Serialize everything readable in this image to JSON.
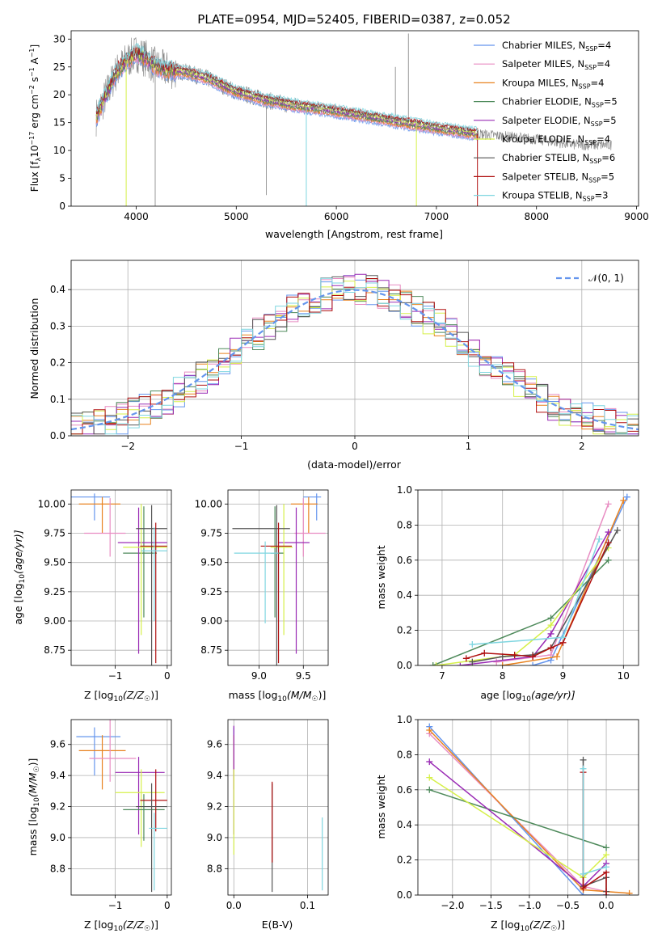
{
  "figure": {
    "title": "PLATE=0954, MJD=52405, FIBERID=0387, z=0.052",
    "colors": {
      "chabrier_miles": "#6495ed",
      "salpeter_miles": "#e88cc2",
      "kroupa_miles": "#e8821f",
      "chabrier_elodie": "#4e8a5b",
      "salpeter_elodie": "#9a2bb5",
      "kroupa_elodie": "#d6f04a",
      "chabrier_stelib": "#555555",
      "salpeter_stelib": "#b01010",
      "kroupa_stelib": "#7fd6e0",
      "observed": "#808080",
      "gaussian": "#6495ed"
    }
  },
  "chart_data": [
    {
      "id": "spectrum",
      "type": "line",
      "title": "PLATE=0954, MJD=52405, FIBERID=0387, z=0.052",
      "xlabel": "wavelength [Angstrom, rest frame]",
      "ylabel_main": "Flux [f",
      "ylabel_sub": "λ",
      "ylabel_rest": "10",
      "ylabel_exp1": "−17",
      "ylabel_mid": " erg cm",
      "ylabel_exp2": "−2",
      "ylabel_mid2": " s",
      "ylabel_exp3": "−1",
      "ylabel_end": " A",
      "ylabel_exp4": "−1",
      "ylabel_close": "]",
      "xlim": [
        3350,
        9020
      ],
      "ylim": [
        0,
        31.5
      ],
      "xticks": [
        4000,
        5000,
        6000,
        7000,
        8000,
        9000
      ],
      "yticks": [
        0,
        5,
        10,
        15,
        20,
        25,
        30
      ],
      "legend": "top-right",
      "legend_entries": [
        {
          "imf": "Chabrier MILES, N",
          "n": "=4",
          "color_key": "chabrier_miles"
        },
        {
          "imf": "Salpeter MILES, N",
          "n": "=4",
          "color_key": "salpeter_miles"
        },
        {
          "imf": "Kroupa MILES, N",
          "n": "=4",
          "color_key": "kroupa_miles"
        },
        {
          "imf": "Chabrier ELODIE, N",
          "n": "=5",
          "color_key": "chabrier_elodie"
        },
        {
          "imf": "Salpeter ELODIE, N",
          "n": "=5",
          "color_key": "salpeter_elodie"
        },
        {
          "imf": "Kroupa ELODIE, N",
          "n": "=4",
          "color_key": "kroupa_elodie"
        },
        {
          "imf": "Chabrier STELIB, N",
          "n": "=6",
          "color_key": "chabrier_stelib"
        },
        {
          "imf": "Salpeter STELIB, N",
          "n": "=5",
          "color_key": "salpeter_stelib"
        },
        {
          "imf": "Kroupa STELIB, N",
          "n": "=3",
          "color_key": "kroupa_stelib"
        }
      ],
      "legend_sub": "SSP",
      "continuum": {
        "x": [
          3600,
          3700,
          3800,
          3900,
          4000,
          4100,
          4200,
          4300,
          4500,
          4700,
          5000,
          5300,
          5600,
          6000,
          6500,
          7000,
          7400,
          8000,
          8400,
          8750
        ],
        "y": [
          16,
          20,
          24,
          26,
          27.5,
          26.5,
          25,
          24.5,
          24,
          23,
          20.5,
          19,
          18,
          17,
          15.5,
          14,
          13,
          12,
          11,
          11
        ]
      },
      "model_range": [
        3600,
        7420
      ],
      "model_spikes": [
        {
          "x": 3900,
          "y": 0,
          "color_key": "kroupa_elodie"
        },
        {
          "x": 5700,
          "y": 0,
          "color_key": "kroupa_stelib"
        },
        {
          "x": 6800,
          "y": 0,
          "color_key": "kroupa_elodie"
        },
        {
          "x": 7410,
          "y": 0,
          "color_key": "salpeter_stelib"
        }
      ],
      "observed_spikes": [
        {
          "x": 4190,
          "y": 0
        },
        {
          "x": 5300,
          "y": 2
        },
        {
          "x": 6720,
          "y": 31
        },
        {
          "x": 6590,
          "y": 25
        }
      ]
    },
    {
      "id": "residuals",
      "type": "step",
      "xlabel": "(data-model)/error",
      "ylabel": "Normed distribution",
      "xlim": [
        -2.5,
        2.5
      ],
      "ylim": [
        0,
        0.48
      ],
      "xticks": [
        -2,
        -1,
        0,
        1,
        2
      ],
      "yticks": [
        0,
        0.1,
        0.2,
        0.3,
        0.4
      ],
      "grid": true,
      "legend": "top-right",
      "legend_label": "𝒩(0, 1)",
      "bin_width": 0.1
    },
    {
      "id": "age_vs_Z",
      "type": "errorbar",
      "xlabel_pre": "Z [log",
      "xlabel_sub": "10",
      "xlabel_post": "(Z/Z",
      "xlabel_sun": "☉",
      "xlabel_end": ")]",
      "ylabel_pre": "age  [log",
      "ylabel_sub": "10",
      "ylabel_post": "(age/yr)]",
      "xlim": [
        -1.85,
        0.08
      ],
      "ylim": [
        8.62,
        10.12
      ],
      "xticks": [
        -1,
        0
      ],
      "yticks": [
        8.75,
        9.0,
        9.25,
        9.5,
        9.75,
        10.0
      ],
      "grid": true,
      "points": [
        {
          "color_key": "chabrier_miles",
          "x": -1.4,
          "xerr": [
            0.45,
            0.3
          ],
          "y": 10.06,
          "yerr": [
            0.2,
            0.03
          ]
        },
        {
          "color_key": "kroupa_miles",
          "x": -1.25,
          "xerr": [
            0.45,
            0.35
          ],
          "y": 10.0,
          "yerr": [
            0.25,
            0.06
          ]
        },
        {
          "color_key": "salpeter_miles",
          "x": -1.1,
          "xerr": [
            0.5,
            0.3
          ],
          "y": 9.75,
          "yerr": [
            0.2,
            0.3
          ]
        },
        {
          "color_key": "chabrier_elodie",
          "x": -0.45,
          "xerr": [
            0.4,
            0.25
          ],
          "y": 9.58,
          "yerr": [
            0.55,
            0.4
          ]
        },
        {
          "color_key": "salpeter_elodie",
          "x": -0.55,
          "xerr": [
            0.4,
            0.55
          ],
          "y": 9.67,
          "yerr": [
            0.95,
            0.3
          ]
        },
        {
          "color_key": "kroupa_elodie",
          "x": -0.5,
          "xerr": [
            0.35,
            0.5
          ],
          "y": 9.63,
          "yerr": [
            0.75,
            0.37
          ]
        },
        {
          "color_key": "chabrier_stelib",
          "x": -0.3,
          "xerr": [
            0.3,
            0.3
          ],
          "y": 9.79,
          "yerr": [
            1.2,
            0.2
          ]
        },
        {
          "color_key": "salpeter_stelib",
          "x": -0.22,
          "xerr": [
            0.3,
            0.22
          ],
          "y": 9.64,
          "yerr": [
            1.0,
            0.2
          ]
        },
        {
          "color_key": "kroupa_stelib",
          "x": -0.25,
          "xerr": [
            0.25,
            0.25
          ],
          "y": 9.6,
          "yerr": [
            0.6,
            0.2
          ]
        }
      ]
    },
    {
      "id": "age_vs_mass",
      "type": "errorbar",
      "xlabel_pre": "mass [log",
      "xlabel_sub": "10",
      "xlabel_post": "(M/M",
      "xlabel_sun": "☉",
      "xlabel_end": ")]",
      "xlim": [
        8.65,
        9.78
      ],
      "ylim": [
        8.62,
        10.12
      ],
      "xticks": [
        9.0,
        9.5
      ],
      "yticks": [
        8.75,
        9.0,
        9.25,
        9.5,
        9.75,
        10.0
      ],
      "grid": true,
      "points": [
        {
          "color_key": "chabrier_miles",
          "x": 9.65,
          "xerr": [
            0.15,
            0.05
          ],
          "y": 10.06,
          "yerr": [
            0.2,
            0.03
          ]
        },
        {
          "color_key": "kroupa_miles",
          "x": 9.56,
          "xerr": [
            0.2,
            0.1
          ],
          "y": 10.0,
          "yerr": [
            0.25,
            0.06
          ]
        },
        {
          "color_key": "salpeter_miles",
          "x": 9.5,
          "xerr": [
            0.1,
            0.25
          ],
          "y": 9.75,
          "yerr": [
            0.2,
            0.3
          ]
        },
        {
          "color_key": "chabrier_elodie",
          "x": 9.18,
          "xerr": [
            0.05,
            0.1
          ],
          "y": 9.58,
          "yerr": [
            0.55,
            0.4
          ]
        },
        {
          "color_key": "salpeter_elodie",
          "x": 9.42,
          "xerr": [
            0.2,
            0.15
          ],
          "y": 9.67,
          "yerr": [
            0.95,
            0.3
          ]
        },
        {
          "color_key": "kroupa_elodie",
          "x": 9.28,
          "xerr": [
            0.15,
            0.1
          ],
          "y": 9.63,
          "yerr": [
            0.75,
            0.37
          ]
        },
        {
          "color_key": "chabrier_stelib",
          "x": 9.2,
          "xerr": [
            0.5,
            0.15
          ],
          "y": 9.79,
          "yerr": [
            1.2,
            0.2
          ]
        },
        {
          "color_key": "salpeter_stelib",
          "x": 9.22,
          "xerr": [
            0.2,
            0.15
          ],
          "y": 9.64,
          "yerr": [
            1.0,
            0.2
          ]
        },
        {
          "color_key": "kroupa_stelib",
          "x": 9.07,
          "xerr": [
            0.35,
            0.15
          ],
          "y": 9.58,
          "yerr": [
            0.6,
            0.1
          ]
        }
      ]
    },
    {
      "id": "weight_vs_age",
      "type": "line",
      "xlabel_pre": "age  [log",
      "xlabel_sub": "10",
      "xlabel_post": "(age/yr)]",
      "ylabel": "mass weight",
      "xlim": [
        6.6,
        10.25
      ],
      "ylim": [
        0,
        1.0
      ],
      "xticks": [
        7,
        8,
        9,
        10
      ],
      "yticks": [
        0.0,
        0.2,
        0.4,
        0.6,
        0.8,
        1.0
      ],
      "grid": true,
      "series": [
        {
          "color_key": "chabrier_miles",
          "x": [
            8.5,
            8.8,
            10.06
          ],
          "y": [
            0.0,
            0.03,
            0.96
          ]
        },
        {
          "color_key": "salpeter_miles",
          "x": [
            7.9,
            8.8,
            9.75
          ],
          "y": [
            0.02,
            0.06,
            0.92
          ]
        },
        {
          "color_key": "kroupa_miles",
          "x": [
            8.0,
            8.9,
            10.0
          ],
          "y": [
            0.0,
            0.05,
            0.94
          ]
        },
        {
          "color_key": "chabrier_elodie",
          "x": [
            6.85,
            8.8,
            9.75
          ],
          "y": [
            0.0,
            0.27,
            0.6
          ]
        },
        {
          "color_key": "salpeter_elodie",
          "x": [
            7.3,
            8.5,
            8.8,
            9.75
          ],
          "y": [
            0.0,
            0.05,
            0.18,
            0.76
          ]
        },
        {
          "color_key": "kroupa_elodie",
          "x": [
            6.9,
            8.2,
            8.8,
            9.75
          ],
          "y": [
            0.0,
            0.06,
            0.23,
            0.67
          ]
        },
        {
          "color_key": "chabrier_stelib",
          "x": [
            7.5,
            8.0,
            8.5,
            8.8,
            9.9
          ],
          "y": [
            0.02,
            0.05,
            0.06,
            0.1,
            0.77
          ]
        },
        {
          "color_key": "salpeter_stelib",
          "x": [
            7.4,
            7.7,
            8.2,
            8.5,
            8.8,
            9.0,
            9.75
          ],
          "y": [
            0.04,
            0.07,
            0.06,
            0.05,
            0.1,
            0.13,
            0.7
          ]
        },
        {
          "color_key": "kroupa_stelib",
          "x": [
            7.5,
            9.0,
            9.6
          ],
          "y": [
            0.12,
            0.16,
            0.72
          ]
        }
      ]
    },
    {
      "id": "mass_vs_Z",
      "type": "errorbar",
      "xlabel_pre": "Z [log",
      "xlabel_sub": "10",
      "xlabel_post": "(Z/Z",
      "xlabel_sun": "☉",
      "xlabel_end": ")]",
      "ylabel_pre": "mass [log",
      "ylabel_sub": "10",
      "ylabel_post": "(M/M",
      "ylabel_sun": "☉",
      "ylabel_end": ")]",
      "xlim": [
        -1.85,
        0.08
      ],
      "ylim": [
        8.63,
        9.76
      ],
      "xticks": [
        -1,
        0
      ],
      "yticks": [
        8.8,
        9.0,
        9.2,
        9.4,
        9.6
      ],
      "grid": true,
      "points": [
        {
          "color_key": "chabrier_miles",
          "x": -1.4,
          "xerr": [
            0.35,
            0.5
          ],
          "y": 9.65,
          "yerr": [
            0.25,
            0.06
          ]
        },
        {
          "color_key": "kroupa_miles",
          "x": -1.25,
          "xerr": [
            0.45,
            0.45
          ],
          "y": 9.56,
          "yerr": [
            0.25,
            0.1
          ]
        },
        {
          "color_key": "salpeter_miles",
          "x": -1.1,
          "xerr": [
            0.4,
            0.5
          ],
          "y": 9.51,
          "yerr": [
            0.15,
            0.25
          ]
        },
        {
          "color_key": "salpeter_elodie",
          "x": -0.55,
          "xerr": [
            0.45,
            0.5
          ],
          "y": 9.42,
          "yerr": [
            0.4,
            0.1
          ]
        },
        {
          "color_key": "kroupa_elodie",
          "x": -0.5,
          "xerr": [
            0.5,
            0.45
          ],
          "y": 9.29,
          "yerr": [
            0.35,
            0.15
          ]
        },
        {
          "color_key": "chabrier_elodie",
          "x": -0.45,
          "xerr": [
            0.4,
            0.4
          ],
          "y": 9.18,
          "yerr": [
            0.2,
            0.1
          ]
        },
        {
          "color_key": "salpeter_stelib",
          "x": -0.22,
          "xerr": [
            0.3,
            0.22
          ],
          "y": 9.24,
          "yerr": [
            0.2,
            0.2
          ]
        },
        {
          "color_key": "chabrier_stelib",
          "x": -0.3,
          "xerr": [
            0.3,
            0.3
          ],
          "y": 9.2,
          "yerr": [
            0.55,
            0.15
          ]
        },
        {
          "color_key": "kroupa_stelib",
          "x": -0.25,
          "xerr": [
            0.1,
            0.25
          ],
          "y": 9.06,
          "yerr": [
            0.4,
            0.1
          ]
        }
      ]
    },
    {
      "id": "mass_vs_ebv",
      "type": "errorbar",
      "xlabel": "E(B-V)",
      "xlim": [
        -0.008,
        0.128
      ],
      "ylim": [
        8.63,
        9.76
      ],
      "xticks": [
        0.0,
        0.1
      ],
      "yticks": [
        8.8,
        9.0,
        9.2,
        9.4,
        9.6
      ],
      "grid": true,
      "points": [
        {
          "color_key": "chabrier_miles",
          "x": 0.0,
          "y": 9.65,
          "yerr": [
            0.25,
            0.06
          ]
        },
        {
          "color_key": "kroupa_miles",
          "x": 0.0,
          "y": 9.56,
          "yerr": [
            0.25,
            0.1
          ]
        },
        {
          "color_key": "salpeter_elodie",
          "x": 0.0,
          "y": 9.42,
          "yerr": [
            0.4,
            0.3
          ]
        },
        {
          "color_key": "kroupa_elodie",
          "x": 0.0,
          "y": 9.29,
          "yerr": [
            0.4,
            0.15
          ]
        },
        {
          "color_key": "chabrier_stelib",
          "x": 0.052,
          "y": 9.2,
          "yerr": [
            0.55,
            0.15
          ]
        },
        {
          "color_key": "salpeter_stelib",
          "x": 0.052,
          "y": 9.24,
          "yerr": [
            0.4,
            0.12
          ]
        },
        {
          "color_key": "kroupa_stelib",
          "x": 0.12,
          "y": 9.06,
          "yerr": [
            0.4,
            0.07
          ]
        }
      ]
    },
    {
      "id": "weight_vs_Z",
      "type": "line",
      "xlabel_pre": "Z [log",
      "xlabel_sub": "10",
      "xlabel_post": "(Z/Z",
      "xlabel_sun": "☉",
      "xlabel_end": ")]",
      "ylabel": "mass weight",
      "xlim": [
        -2.45,
        0.42
      ],
      "ylim": [
        0,
        1.0
      ],
      "xticks": [
        -2.0,
        -1.5,
        -1.0,
        -0.5,
        0.0
      ],
      "yticks": [
        0.0,
        0.2,
        0.4,
        0.6,
        0.8,
        1.0
      ],
      "grid": true,
      "series": [
        {
          "color_key": "chabrier_miles",
          "x": [
            -2.3,
            -0.3,
            0.0
          ],
          "y": [
            0.96,
            0.0,
            0.0
          ]
        },
        {
          "color_key": "salpeter_miles",
          "x": [
            -2.3,
            -0.3,
            0.0
          ],
          "y": [
            0.92,
            0.05,
            0.02
          ]
        },
        {
          "color_key": "kroupa_miles",
          "x": [
            -2.3,
            -0.3,
            0.3
          ],
          "y": [
            0.94,
            0.03,
            0.01
          ]
        },
        {
          "color_key": "chabrier_elodie",
          "x": [
            -2.3,
            0.0
          ],
          "y": [
            0.6,
            0.27
          ]
        },
        {
          "color_key": "salpeter_elodie",
          "x": [
            -2.3,
            -0.3,
            0.0
          ],
          "y": [
            0.76,
            0.05,
            0.18
          ]
        },
        {
          "color_key": "kroupa_elodie",
          "x": [
            -2.3,
            -0.3,
            0.0
          ],
          "y": [
            0.67,
            0.1,
            0.23
          ]
        },
        {
          "color_key": "chabrier_stelib",
          "x": [
            -0.3,
            -0.3,
            0.0,
            0.0
          ],
          "y": [
            0.77,
            0.05,
            0.1,
            0.02
          ]
        },
        {
          "color_key": "salpeter_stelib",
          "x": [
            -0.3,
            -0.3,
            0.0,
            0.0
          ],
          "y": [
            0.7,
            0.04,
            0.13,
            0.0
          ]
        },
        {
          "color_key": "kroupa_stelib",
          "x": [
            -0.3,
            -0.3,
            0.0
          ],
          "y": [
            0.72,
            0.12,
            0.16
          ]
        }
      ]
    }
  ]
}
